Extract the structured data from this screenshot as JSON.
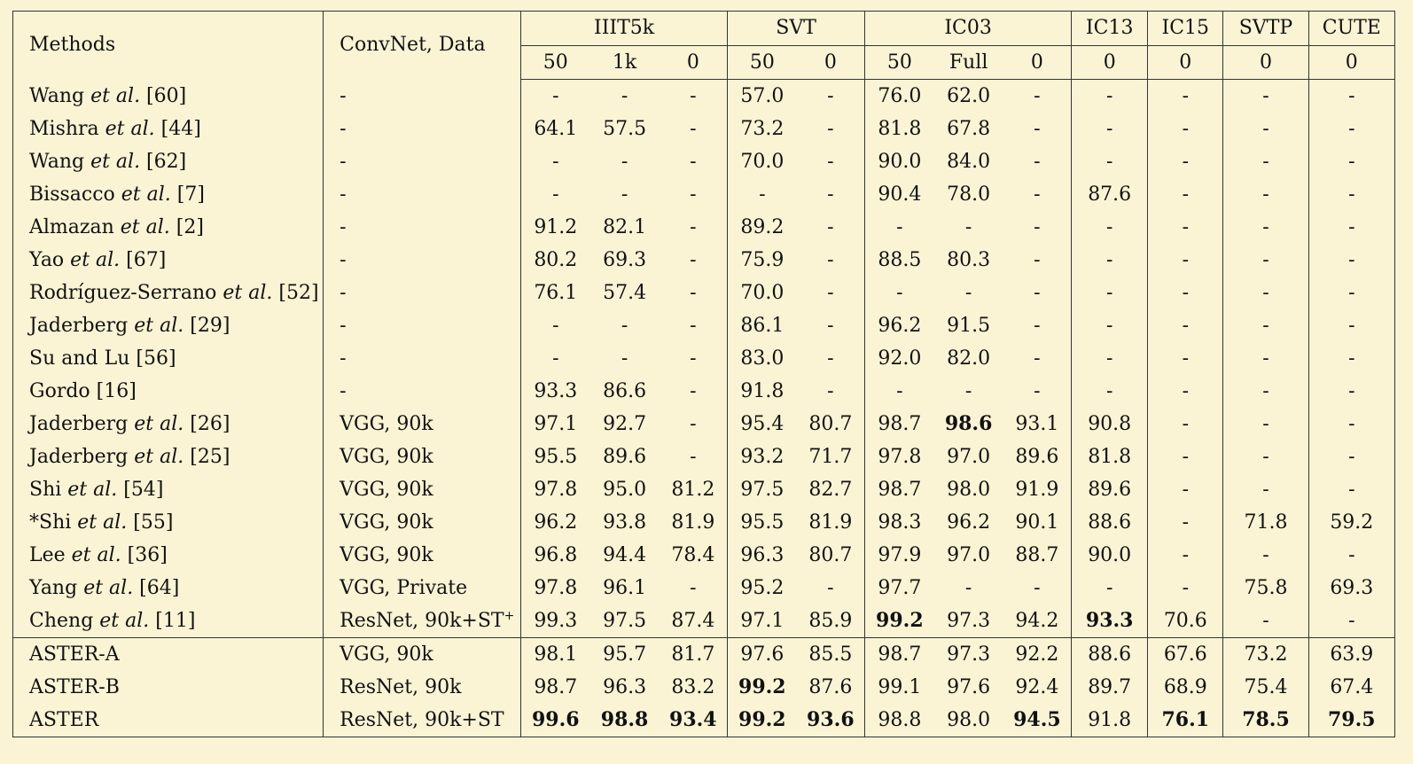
{
  "header": {
    "methods": "Methods",
    "convnet": "ConvNet, Data",
    "groups": [
      {
        "name": "IIIT5k",
        "subs": [
          "50",
          "1k",
          "0"
        ]
      },
      {
        "name": "SVT",
        "subs": [
          "50",
          "0"
        ]
      },
      {
        "name": "IC03",
        "subs": [
          "50",
          "Full",
          "0"
        ]
      },
      {
        "name": "IC13",
        "subs": [
          "0"
        ]
      },
      {
        "name": "IC15",
        "subs": [
          "0"
        ]
      },
      {
        "name": "SVTP",
        "subs": [
          "0"
        ]
      },
      {
        "name": "CUTE",
        "subs": [
          "0"
        ]
      }
    ]
  },
  "rows": [
    {
      "pre": "Wang ",
      "it": "et al.",
      "post": " [60]",
      "conv": "-",
      "vals": [
        "-",
        "-",
        "-",
        "57.0",
        "-",
        "76.0",
        "62.0",
        "-",
        "-",
        "-",
        "-",
        "-"
      ],
      "bold": []
    },
    {
      "pre": "Mishra ",
      "it": "et al.",
      "post": " [44]",
      "conv": "-",
      "vals": [
        "64.1",
        "57.5",
        "-",
        "73.2",
        "-",
        "81.8",
        "67.8",
        "-",
        "-",
        "-",
        "-",
        "-"
      ],
      "bold": []
    },
    {
      "pre": "Wang ",
      "it": "et al.",
      "post": " [62]",
      "conv": "-",
      "vals": [
        "-",
        "-",
        "-",
        "70.0",
        "-",
        "90.0",
        "84.0",
        "-",
        "-",
        "-",
        "-",
        "-"
      ],
      "bold": []
    },
    {
      "pre": "Bissacco ",
      "it": "et al.",
      "post": " [7]",
      "conv": "-",
      "vals": [
        "-",
        "-",
        "-",
        "-",
        "-",
        "90.4",
        "78.0",
        "-",
        "87.6",
        "-",
        "-",
        "-"
      ],
      "bold": []
    },
    {
      "pre": "Almazan ",
      "it": "et al.",
      "post": " [2]",
      "conv": "-",
      "vals": [
        "91.2",
        "82.1",
        "-",
        "89.2",
        "-",
        "-",
        "-",
        "-",
        "-",
        "-",
        "-",
        "-"
      ],
      "bold": []
    },
    {
      "pre": "Yao ",
      "it": "et al.",
      "post": " [67]",
      "conv": "-",
      "vals": [
        "80.2",
        "69.3",
        "-",
        "75.9",
        "-",
        "88.5",
        "80.3",
        "-",
        "-",
        "-",
        "-",
        "-"
      ],
      "bold": []
    },
    {
      "pre": "Rodríguez-Serrano ",
      "it": "et al.",
      "post": " [52]",
      "conv": "-",
      "vals": [
        "76.1",
        "57.4",
        "-",
        "70.0",
        "-",
        "-",
        "-",
        "-",
        "-",
        "-",
        "-",
        "-"
      ],
      "bold": []
    },
    {
      "pre": "Jaderberg ",
      "it": "et al.",
      "post": " [29]",
      "conv": "-",
      "vals": [
        "-",
        "-",
        "-",
        "86.1",
        "-",
        "96.2",
        "91.5",
        "-",
        "-",
        "-",
        "-",
        "-"
      ],
      "bold": []
    },
    {
      "pre": "Su and Lu [56]",
      "it": "",
      "post": "",
      "conv": "-",
      "vals": [
        "-",
        "-",
        "-",
        "83.0",
        "-",
        "92.0",
        "82.0",
        "-",
        "-",
        "-",
        "-",
        "-"
      ],
      "bold": []
    },
    {
      "pre": "Gordo [16]",
      "it": "",
      "post": "",
      "conv": "-",
      "vals": [
        "93.3",
        "86.6",
        "-",
        "91.8",
        "-",
        "-",
        "-",
        "-",
        "-",
        "-",
        "-",
        "-"
      ],
      "bold": []
    },
    {
      "pre": "Jaderberg ",
      "it": "et al.",
      "post": " [26]",
      "conv": "VGG, 90k",
      "vals": [
        "97.1",
        "92.7",
        "-",
        "95.4",
        "80.7",
        "98.7",
        "98.6",
        "93.1",
        "90.8",
        "-",
        "-",
        "-"
      ],
      "bold": [
        6
      ]
    },
    {
      "pre": "Jaderberg ",
      "it": "et al.",
      "post": " [25]",
      "conv": "VGG, 90k",
      "vals": [
        "95.5",
        "89.6",
        "-",
        "93.2",
        "71.7",
        "97.8",
        "97.0",
        "89.6",
        "81.8",
        "-",
        "-",
        "-"
      ],
      "bold": []
    },
    {
      "pre": "Shi ",
      "it": "et al.",
      "post": " [54]",
      "conv": "VGG, 90k",
      "vals": [
        "97.8",
        "95.0",
        "81.2",
        "97.5",
        "82.7",
        "98.7",
        "98.0",
        "91.9",
        "89.6",
        "-",
        "-",
        "-"
      ],
      "bold": []
    },
    {
      "pre": "*Shi ",
      "it": "et al.",
      "post": " [55]",
      "conv": "VGG, 90k",
      "vals": [
        "96.2",
        "93.8",
        "81.9",
        "95.5",
        "81.9",
        "98.3",
        "96.2",
        "90.1",
        "88.6",
        "-",
        "71.8",
        "59.2"
      ],
      "bold": []
    },
    {
      "pre": "Lee ",
      "it": "et al.",
      "post": " [36]",
      "conv": "VGG, 90k",
      "vals": [
        "96.8",
        "94.4",
        "78.4",
        "96.3",
        "80.7",
        "97.9",
        "97.0",
        "88.7",
        "90.0",
        "-",
        "-",
        "-"
      ],
      "bold": []
    },
    {
      "pre": "Yang ",
      "it": "et al.",
      "post": " [64]",
      "conv": "VGG, Private",
      "vals": [
        "97.8",
        "96.1",
        "-",
        "95.2",
        "-",
        "97.7",
        "-",
        "-",
        "-",
        "-",
        "75.8",
        "69.3"
      ],
      "bold": []
    },
    {
      "pre": "Cheng ",
      "it": "et al.",
      "post": " [11]",
      "conv": "ResNet, 90k+ST",
      "sup": "+",
      "vals": [
        "99.3",
        "97.5",
        "87.4",
        "97.1",
        "85.9",
        "99.2",
        "97.3",
        "94.2",
        "93.3",
        "70.6",
        "-",
        "-"
      ],
      "bold": [
        5,
        8
      ]
    }
  ],
  "aster_rows": [
    {
      "pre": "ASTER-A",
      "conv": "VGG, 90k",
      "vals": [
        "98.1",
        "95.7",
        "81.7",
        "97.6",
        "85.5",
        "98.7",
        "97.3",
        "92.2",
        "88.6",
        "67.6",
        "73.2",
        "63.9"
      ],
      "bold": []
    },
    {
      "pre": "ASTER-B",
      "conv": "ResNet, 90k",
      "vals": [
        "98.7",
        "96.3",
        "83.2",
        "99.2",
        "87.6",
        "99.1",
        "97.6",
        "92.4",
        "89.7",
        "68.9",
        "75.4",
        "67.4"
      ],
      "bold": [
        3
      ]
    },
    {
      "pre": "ASTER",
      "conv": "ResNet, 90k+ST",
      "vals": [
        "99.6",
        "98.8",
        "93.4",
        "99.2",
        "93.6",
        "98.8",
        "98.0",
        "94.5",
        "91.8",
        "76.1",
        "78.5",
        "79.5"
      ],
      "bold": [
        0,
        1,
        2,
        3,
        4,
        7,
        9,
        10,
        11
      ]
    }
  ]
}
